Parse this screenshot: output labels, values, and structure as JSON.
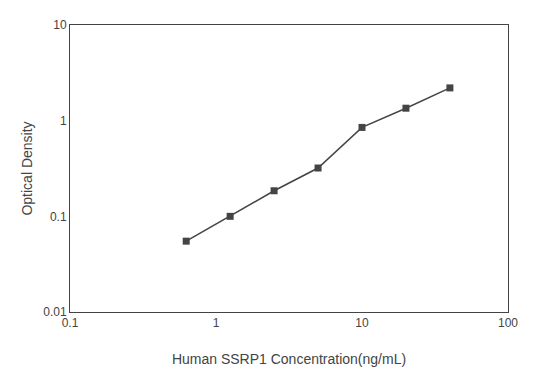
{
  "chart_data": {
    "type": "line",
    "x": [
      0.625,
      1.25,
      2.5,
      5,
      10,
      20,
      40
    ],
    "values": [
      0.055,
      0.1,
      0.185,
      0.32,
      0.85,
      1.35,
      2.2
    ],
    "xlabel": "Human SSRP1 Concentration(ng/mL)",
    "ylabel": "Optical Density",
    "xlim": [
      0.1,
      100
    ],
    "ylim": [
      0.01,
      10
    ],
    "xticks": [
      0.1,
      1,
      10,
      100
    ],
    "yticks": [
      0.01,
      0.1,
      1,
      10
    ],
    "log": true,
    "grid": false,
    "color": "#444444",
    "marker": "square",
    "line_style": "solid"
  }
}
